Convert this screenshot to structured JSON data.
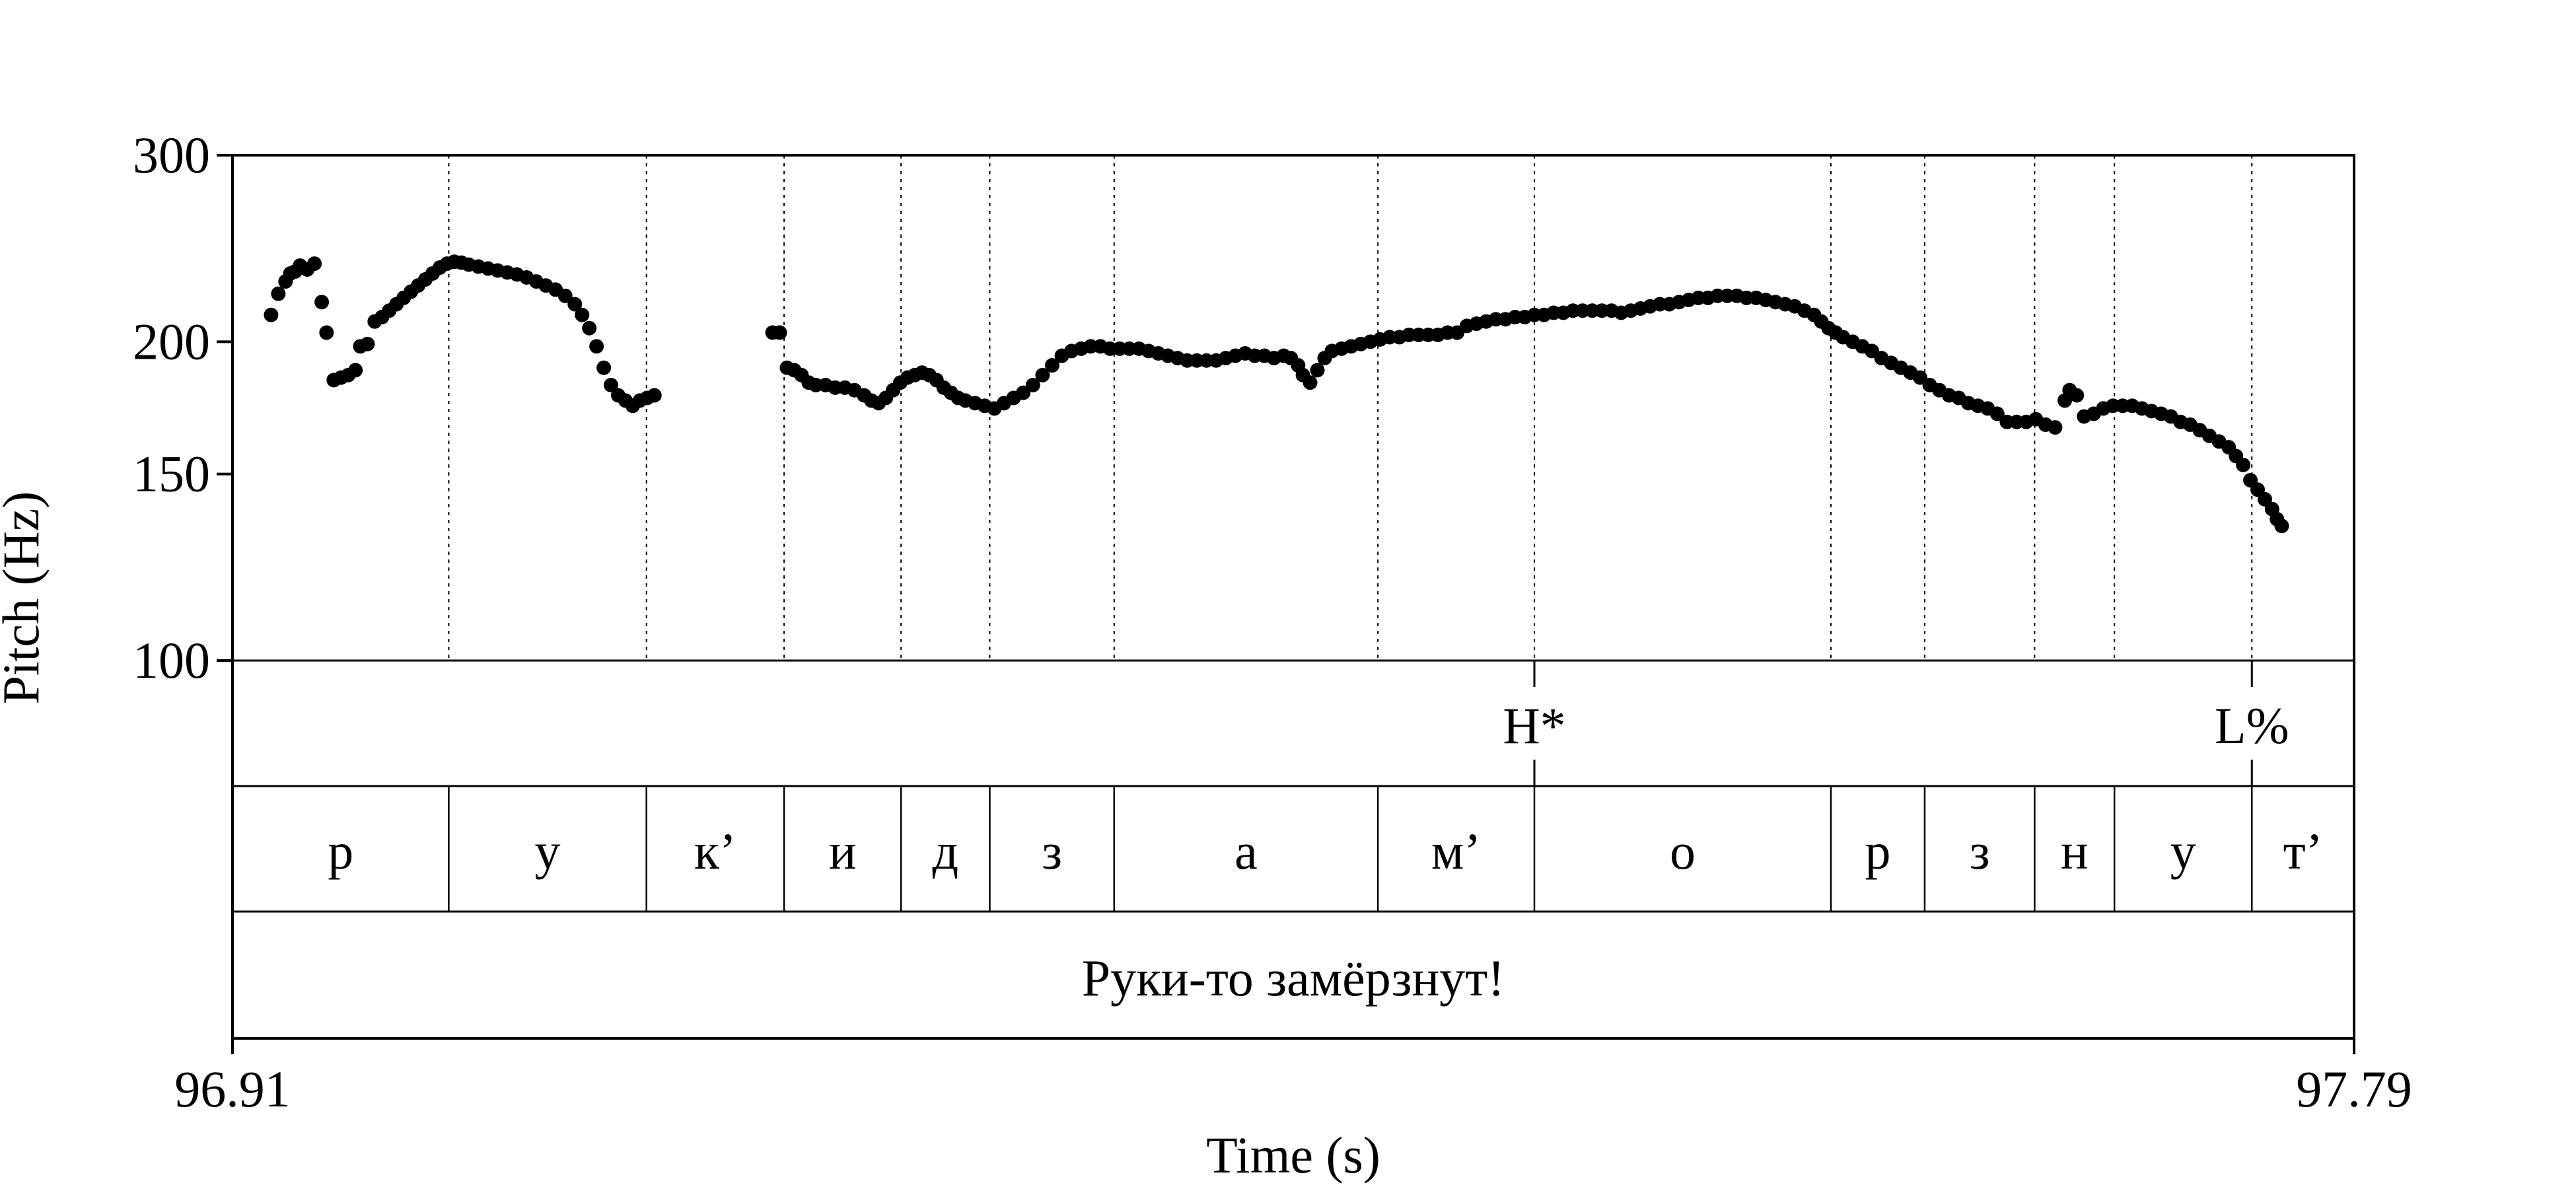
{
  "chart_data": {
    "type": "scatter",
    "xlabel": "Time (s)",
    "ylabel": "Pitch (Hz)",
    "xlim": [
      96.91,
      97.79
    ],
    "ylim": [
      100,
      300
    ],
    "y_scale": "log",
    "x_tick_labels": [
      "96.91",
      "97.79"
    ],
    "y_ticks": [
      100,
      150,
      200,
      300
    ],
    "y_tick_labels": [
      "100",
      "150",
      "200",
      "300"
    ],
    "segment_boundaries": [
      96.9997,
      97.0817,
      97.1388,
      97.1873,
      97.2241,
      97.2757,
      97.3851,
      97.45,
      97.573,
      97.6119,
      97.6575,
      97.6906,
      97.7476
    ],
    "tones": [
      {
        "label": "H*",
        "time": 97.45
      },
      {
        "label": "L%",
        "time": 97.7476
      }
    ],
    "segments": [
      "р",
      "у",
      "к’",
      "и",
      "д",
      "з",
      "а",
      "м’",
      "о",
      "р",
      "з",
      "н",
      "у",
      "т’"
    ],
    "utterance": "Руки-то замёрзнут!",
    "pitch_series": [
      {
        "name": "",
        "points": [
          [
            96.926,
            212
          ],
          [
            96.929,
            222
          ],
          [
            96.932,
            228
          ],
          [
            96.934,
            232
          ],
          [
            96.936,
            233
          ],
          [
            96.938,
            236
          ],
          [
            96.941,
            234
          ],
          [
            96.944,
            237
          ],
          [
            96.947,
            218
          ],
          [
            96.949,
            204
          ],
          [
            96.952,
            184
          ],
          [
            96.955,
            185
          ],
          [
            96.958,
            186
          ],
          [
            96.961,
            188
          ],
          [
            96.963,
            198
          ],
          [
            96.966,
            199
          ],
          [
            96.969,
            209
          ],
          [
            96.972,
            211
          ],
          [
            96.975,
            214
          ],
          [
            96.978,
            217
          ],
          [
            96.981,
            220
          ],
          [
            96.984,
            223
          ],
          [
            96.987,
            226
          ],
          [
            96.99,
            229
          ],
          [
            96.993,
            232
          ],
          [
            96.996,
            235
          ],
          [
            96.999,
            237
          ],
          [
            97.002,
            238
          ],
          [
            97.005,
            237.5
          ],
          [
            97.008,
            236.5
          ],
          [
            97.012,
            235.5
          ],
          [
            97.016,
            234.5
          ],
          [
            97.02,
            233.5
          ],
          [
            97.024,
            232.5
          ],
          [
            97.028,
            231.5
          ],
          [
            97.032,
            230
          ],
          [
            97.036,
            228
          ],
          [
            97.04,
            226
          ],
          [
            97.044,
            224
          ],
          [
            97.048,
            221
          ],
          [
            97.052,
            217
          ],
          [
            97.055,
            212
          ],
          [
            97.058,
            206
          ],
          [
            97.061,
            198
          ],
          [
            97.064,
            189
          ],
          [
            97.067,
            182
          ],
          [
            97.07,
            178
          ],
          [
            97.073,
            176
          ],
          [
            97.076,
            174
          ],
          [
            97.079,
            176
          ],
          [
            97.082,
            177
          ],
          [
            97.085,
            178
          ],
          [
            97.134,
            204
          ],
          [
            97.137,
            204
          ],
          [
            97.14,
            189
          ],
          [
            97.143,
            188
          ],
          [
            97.146,
            186
          ],
          [
            97.149,
            183
          ],
          [
            97.152,
            182
          ],
          [
            97.156,
            182
          ],
          [
            97.16,
            181
          ],
          [
            97.164,
            181
          ],
          [
            97.168,
            180
          ],
          [
            97.172,
            178
          ],
          [
            97.175,
            176
          ],
          [
            97.178,
            175
          ],
          [
            97.181,
            177
          ],
          [
            97.184,
            180
          ],
          [
            97.187,
            183
          ],
          [
            97.19,
            185
          ],
          [
            97.193,
            186
          ],
          [
            97.196,
            187
          ],
          [
            97.199,
            186
          ],
          [
            97.202,
            184
          ],
          [
            97.205,
            181
          ],
          [
            97.208,
            179
          ],
          [
            97.211,
            177
          ],
          [
            97.214,
            176
          ],
          [
            97.218,
            175
          ],
          [
            97.222,
            174
          ],
          [
            97.226,
            173
          ],
          [
            97.23,
            175
          ],
          [
            97.234,
            177
          ],
          [
            97.238,
            179
          ],
          [
            97.242,
            182
          ],
          [
            97.246,
            186
          ],
          [
            97.25,
            190
          ],
          [
            97.254,
            194
          ],
          [
            97.258,
            196
          ],
          [
            97.262,
            197
          ],
          [
            97.266,
            198
          ],
          [
            97.27,
            198
          ],
          [
            97.274,
            197
          ],
          [
            97.278,
            197
          ],
          [
            97.282,
            197
          ],
          [
            97.286,
            197
          ],
          [
            97.29,
            196
          ],
          [
            97.294,
            195
          ],
          [
            97.298,
            194
          ],
          [
            97.302,
            193
          ],
          [
            97.306,
            192
          ],
          [
            97.31,
            192
          ],
          [
            97.314,
            192
          ],
          [
            97.318,
            192
          ],
          [
            97.322,
            193
          ],
          [
            97.326,
            194
          ],
          [
            97.33,
            195
          ],
          [
            97.334,
            194
          ],
          [
            97.338,
            194
          ],
          [
            97.342,
            193
          ],
          [
            97.346,
            194
          ],
          [
            97.349,
            193
          ],
          [
            97.352,
            190
          ],
          [
            97.354,
            186
          ],
          [
            97.357,
            183
          ],
          [
            97.36,
            188
          ],
          [
            97.363,
            193
          ],
          [
            97.366,
            196
          ],
          [
            97.37,
            197
          ],
          [
            97.374,
            198
          ],
          [
            97.378,
            199
          ],
          [
            97.382,
            200
          ],
          [
            97.386,
            201
          ],
          [
            97.39,
            202
          ],
          [
            97.394,
            202
          ],
          [
            97.398,
            203
          ],
          [
            97.402,
            203
          ],
          [
            97.406,
            203
          ],
          [
            97.41,
            203
          ],
          [
            97.414,
            204
          ],
          [
            97.418,
            204
          ],
          [
            97.422,
            207
          ],
          [
            97.426,
            208
          ],
          [
            97.43,
            209
          ],
          [
            97.434,
            210
          ],
          [
            97.438,
            210
          ],
          [
            97.442,
            211
          ],
          [
            97.446,
            211
          ],
          [
            97.45,
            212
          ],
          [
            97.454,
            212
          ],
          [
            97.458,
            213
          ],
          [
            97.462,
            213
          ],
          [
            97.466,
            214
          ],
          [
            97.47,
            214
          ],
          [
            97.474,
            214
          ],
          [
            97.478,
            214
          ],
          [
            97.482,
            214
          ],
          [
            97.486,
            213
          ],
          [
            97.49,
            214
          ],
          [
            97.494,
            215
          ],
          [
            97.498,
            216
          ],
          [
            97.502,
            217
          ],
          [
            97.506,
            217
          ],
          [
            97.51,
            218
          ],
          [
            97.514,
            219
          ],
          [
            97.518,
            220
          ],
          [
            97.522,
            220
          ],
          [
            97.526,
            221
          ],
          [
            97.53,
            221
          ],
          [
            97.534,
            221
          ],
          [
            97.538,
            220
          ],
          [
            97.542,
            220
          ],
          [
            97.546,
            219
          ],
          [
            97.55,
            218
          ],
          [
            97.554,
            217
          ],
          [
            97.558,
            216
          ],
          [
            97.562,
            214
          ],
          [
            97.566,
            212
          ],
          [
            97.569,
            209
          ],
          [
            97.572,
            206
          ],
          [
            97.575,
            204
          ],
          [
            97.578,
            202
          ],
          [
            97.582,
            200
          ],
          [
            97.586,
            198
          ],
          [
            97.59,
            196
          ],
          [
            97.594,
            193
          ],
          [
            97.598,
            191
          ],
          [
            97.602,
            189
          ],
          [
            97.606,
            187
          ],
          [
            97.61,
            185
          ],
          [
            97.614,
            182
          ],
          [
            97.618,
            180
          ],
          [
            97.622,
            178
          ],
          [
            97.626,
            177
          ],
          [
            97.63,
            175
          ],
          [
            97.634,
            174
          ],
          [
            97.638,
            173
          ],
          [
            97.642,
            171
          ],
          [
            97.646,
            168
          ],
          [
            97.65,
            168
          ],
          [
            97.654,
            168
          ],
          [
            97.658,
            169
          ],
          [
            97.662,
            167
          ],
          [
            97.666,
            166
          ],
          [
            97.67,
            176
          ],
          [
            97.672,
            180
          ],
          [
            97.675,
            178
          ],
          [
            97.678,
            170
          ],
          [
            97.682,
            171
          ],
          [
            97.686,
            173
          ],
          [
            97.69,
            174
          ],
          [
            97.694,
            174
          ],
          [
            97.698,
            174
          ],
          [
            97.702,
            173
          ],
          [
            97.706,
            172
          ],
          [
            97.71,
            171
          ],
          [
            97.714,
            170
          ],
          [
            97.718,
            168
          ],
          [
            97.722,
            167
          ],
          [
            97.726,
            165
          ],
          [
            97.73,
            163
          ],
          [
            97.734,
            161
          ],
          [
            97.738,
            159
          ],
          [
            97.741,
            156
          ],
          [
            97.744,
            153
          ],
          [
            97.747,
            148
          ],
          [
            97.75,
            145
          ],
          [
            97.753,
            142
          ],
          [
            97.756,
            139
          ],
          [
            97.758,
            136
          ],
          [
            97.76,
            134
          ]
        ]
      }
    ]
  }
}
